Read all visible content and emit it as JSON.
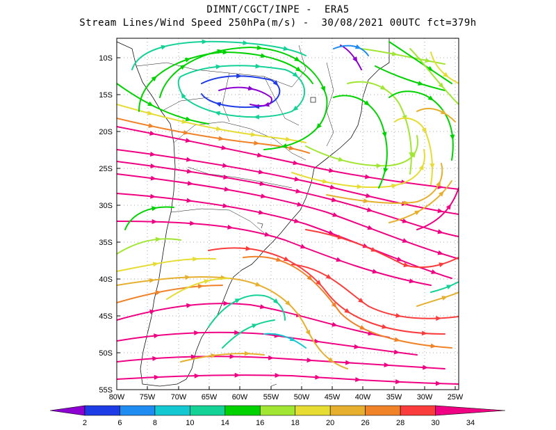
{
  "title": {
    "line1": "DIMNT/CGCT/INPE -  ERA5",
    "line2": "Stream Lines/Wind Speed 250hPa(m/s) -  30/08/2021 00UTC fct=379h"
  },
  "map": {
    "lat_labels": [
      "10S",
      "15S",
      "20S",
      "25S",
      "30S",
      "35S",
      "40S",
      "45S",
      "50S",
      "55S"
    ],
    "lon_labels": [
      "80W",
      "75W",
      "70W",
      "65W",
      "60W",
      "55W",
      "50W",
      "45W",
      "40W",
      "35W",
      "30W",
      "25W"
    ]
  },
  "colorbar": {
    "ticks": [
      "2",
      "6",
      "8",
      "10",
      "14",
      "16",
      "18",
      "20",
      "26",
      "28",
      "30",
      "34"
    ],
    "colors": [
      "#8c00d2",
      "#1e3ce6",
      "#1e8cf0",
      "#14c8d2",
      "#14d296",
      "#00d200",
      "#a0e632",
      "#e6dc32",
      "#e6af2d",
      "#f08228",
      "#fa3c3c",
      "#f00082"
    ]
  }
}
